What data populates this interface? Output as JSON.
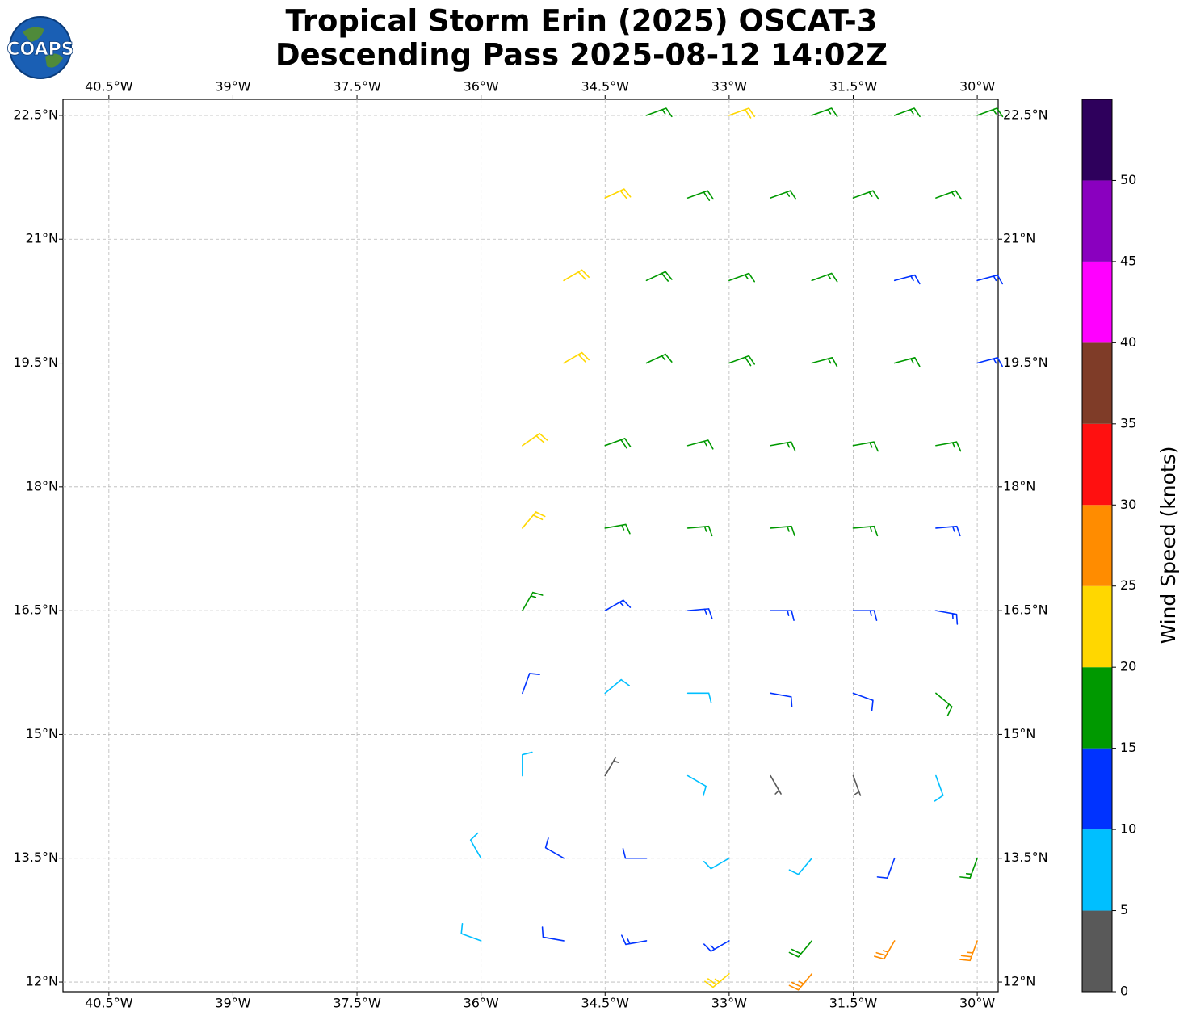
{
  "chart_data": {
    "type": "barbs",
    "title": "Tropical Storm Erin (2025) OSCAT-3",
    "subtitle": "Descending Pass 2025-08-12 14:02Z",
    "logo_text": "COAPS",
    "xlim": [
      -41.055,
      -29.747
    ],
    "ylim": [
      11.883,
      22.695
    ],
    "xticks": [
      {
        "value": -40.5,
        "label": "40.5°W"
      },
      {
        "value": -39,
        "label": "39°W"
      },
      {
        "value": -37.5,
        "label": "37.5°W"
      },
      {
        "value": -36,
        "label": "36°W"
      },
      {
        "value": -34.5,
        "label": "34.5°W"
      },
      {
        "value": -33,
        "label": "33°W"
      },
      {
        "value": -31.5,
        "label": "31.5°W"
      },
      {
        "value": -30,
        "label": "30°W"
      }
    ],
    "yticks": [
      {
        "value": 12,
        "label": "12°N"
      },
      {
        "value": 13.5,
        "label": "13.5°N"
      },
      {
        "value": 15,
        "label": "15°N"
      },
      {
        "value": 16.5,
        "label": "16.5°N"
      },
      {
        "value": 18,
        "label": "18°N"
      },
      {
        "value": 19.5,
        "label": "19.5°N"
      },
      {
        "value": 21,
        "label": "21°N"
      },
      {
        "value": 22.5,
        "label": "22.5°N"
      }
    ],
    "grid": true,
    "x": [
      -34.0,
      -33.0,
      -32.0,
      -31.0,
      -30.0,
      -34.5,
      -33.5,
      -32.5,
      -31.5,
      -30.5,
      -35.0,
      -34.0,
      -33.0,
      -32.0,
      -31.0,
      -30.0,
      -35.0,
      -34.0,
      -33.0,
      -32.0,
      -31.0,
      -30.0,
      -35.5,
      -34.5,
      -33.5,
      -32.5,
      -31.5,
      -30.5,
      -35.5,
      -34.5,
      -33.5,
      -32.5,
      -31.5,
      -30.5,
      -35.5,
      -34.5,
      -33.5,
      -32.5,
      -31.5,
      -30.5,
      -35.5,
      -34.5,
      -33.5,
      -32.5,
      -31.5,
      -30.5,
      -35.5,
      -34.5,
      -33.5,
      -32.5,
      -31.5,
      -30.5,
      -36.0,
      -35.0,
      -34.0,
      -33.0,
      -32.0,
      -31.0,
      -30.0,
      -36.0,
      -35.0,
      -34.0,
      -33.0,
      -32.0,
      -31.0,
      -30.0,
      -33.0,
      -32.0
    ],
    "y": [
      22.5,
      22.5,
      22.5,
      22.5,
      22.5,
      21.5,
      21.5,
      21.5,
      21.5,
      21.5,
      20.5,
      20.5,
      20.5,
      20.5,
      20.5,
      20.5,
      19.5,
      19.5,
      19.5,
      19.5,
      19.5,
      19.5,
      18.5,
      18.5,
      18.5,
      18.5,
      18.5,
      18.5,
      17.5,
      17.5,
      17.5,
      17.5,
      17.5,
      17.5,
      16.5,
      16.5,
      16.5,
      16.5,
      16.5,
      16.5,
      15.5,
      15.5,
      15.5,
      15.5,
      15.5,
      15.5,
      14.5,
      14.5,
      14.5,
      14.5,
      14.5,
      14.5,
      13.5,
      13.5,
      13.5,
      13.5,
      13.5,
      13.5,
      13.5,
      12.5,
      12.5,
      12.5,
      12.5,
      12.5,
      12.5,
      12.5,
      12.1,
      12.1
    ],
    "speed": [
      17,
      20,
      17,
      17,
      16,
      20,
      18,
      17,
      17,
      17,
      21,
      18,
      17,
      16,
      14,
      14,
      21,
      17,
      18,
      16,
      16,
      13,
      21,
      18,
      17,
      16,
      16,
      15,
      21,
      17,
      16,
      16,
      15,
      14,
      16,
      13,
      13,
      13,
      13,
      13,
      11,
      9,
      9,
      12,
      12,
      17,
      8,
      4,
      8,
      4,
      3,
      9,
      9,
      11,
      11,
      9,
      8,
      10,
      16,
      9,
      12,
      13,
      14,
      18,
      27,
      27,
      24,
      27
    ],
    "direction": [
      70,
      70,
      70,
      70,
      70,
      65,
      70,
      70,
      70,
      70,
      60,
      65,
      70,
      70,
      75,
      75,
      60,
      65,
      70,
      75,
      75,
      75,
      55,
      70,
      75,
      80,
      80,
      80,
      40,
      80,
      85,
      85,
      85,
      85,
      30,
      60,
      85,
      90,
      90,
      100,
      20,
      50,
      90,
      100,
      110,
      130,
      360,
      30,
      120,
      150,
      160,
      160,
      330,
      300,
      270,
      240,
      220,
      200,
      200,
      290,
      280,
      260,
      240,
      220,
      210,
      200,
      230,
      220
    ],
    "colorbar": {
      "label": "Wind Speed (knots)",
      "lim": [
        0,
        55
      ],
      "bounds": [
        0,
        5,
        10,
        15,
        20,
        25,
        30,
        35,
        40,
        45,
        50,
        55
      ],
      "colors": [
        "#595959",
        "#00bfff",
        "#0033ff",
        "#009900",
        "#ffd700",
        "#ff8c00",
        "#ff1010",
        "#7f3c28",
        "#ff00ff",
        "#8a00bf",
        "#2e005c"
      ],
      "ticks": [
        0,
        5,
        10,
        15,
        20,
        25,
        30,
        35,
        40,
        45,
        50
      ]
    }
  }
}
